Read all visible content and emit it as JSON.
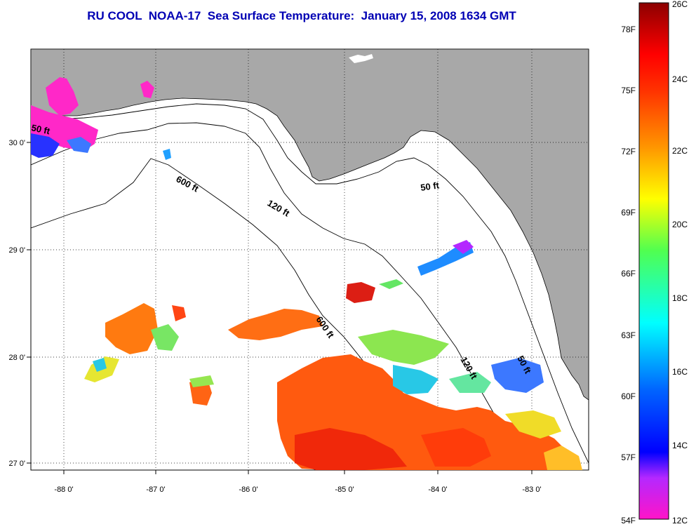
{
  "title": "RU COOL  NOAA-17  Sea Surface Temperature:  January 15, 2008 1634 GMT",
  "colors": {
    "land": "#a8a8a8",
    "ocean_no_data": "#ffffff",
    "title": "#0000b4"
  },
  "map": {
    "lon_range": [
      -88.3,
      -82.4
    ],
    "lat_range": [
      26.95,
      30.95
    ],
    "lon_ticks": [
      "-88 0'",
      "-87 0'",
      "-86 0'",
      "-85 0'",
      "-84 0'",
      "-83 0'"
    ],
    "lat_ticks": [
      "30 0'",
      "29 0'",
      "28 0'",
      "27 0'"
    ],
    "grid": "dotted",
    "contour_labels": [
      "50 ft",
      "600 ft",
      "120 ft",
      "50 ft",
      "600 ft",
      "120 ft",
      "50 ft"
    ]
  },
  "colorbar": {
    "celsius_labels": [
      "26C",
      "24C",
      "22C",
      "20C",
      "18C",
      "16C",
      "14C",
      "12C"
    ],
    "fahrenheit_labels": [
      "78F",
      "75F",
      "72F",
      "69F",
      "66F",
      "63F",
      "60F",
      "57F",
      "54F"
    ],
    "range_c": [
      12,
      26
    ]
  }
}
